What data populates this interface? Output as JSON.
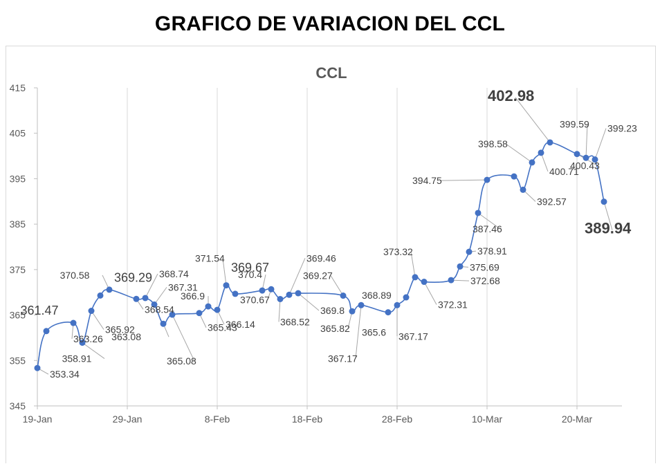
{
  "page": {
    "title": "GRAFICO DE VARIACION DEL CCL"
  },
  "chart_data": {
    "type": "line",
    "title": "CCL",
    "xlabel": "",
    "ylabel": "",
    "ylim": [
      345,
      415
    ],
    "yticks": [
      345,
      355,
      365,
      375,
      385,
      395,
      405,
      415
    ],
    "xlim_days": [
      0,
      65
    ],
    "xticks": [
      {
        "label": "19-Jan",
        "day": 0
      },
      {
        "label": "29-Jan",
        "day": 10
      },
      {
        "label": "8-Feb",
        "day": 20
      },
      {
        "label": "18-Feb",
        "day": 30
      },
      {
        "label": "28-Feb",
        "day": 40
      },
      {
        "label": "10-Mar",
        "day": 50
      },
      {
        "label": "20-Mar",
        "day": 60
      }
    ],
    "grid": "vertical",
    "smooth": true,
    "series": [
      {
        "color": "#4472c4",
        "points": [
          {
            "day": 0,
            "value": 353.34,
            "label": "353.34"
          },
          {
            "day": 1,
            "value": 361.47,
            "label": "361.47"
          },
          {
            "day": 4,
            "value": 363.26,
            "label": "363.26"
          },
          {
            "day": 5,
            "value": 358.91,
            "label": "358.91"
          },
          {
            "day": 6,
            "value": 365.92,
            "label": "365.92"
          },
          {
            "day": 7,
            "value": 369.29,
            "label": "369.29"
          },
          {
            "day": 8,
            "value": 370.58,
            "label": "370.58"
          },
          {
            "day": 11,
            "value": 368.54,
            "label": "368.54"
          },
          {
            "day": 12,
            "value": 368.74,
            "label": "368.74"
          },
          {
            "day": 13,
            "value": 367.31,
            "label": "367.31"
          },
          {
            "day": 14,
            "value": 363.08,
            "label": "363.08"
          },
          {
            "day": 15,
            "value": 365.08,
            "label": "365.08"
          },
          {
            "day": 18,
            "value": 365.43,
            "label": "365.43"
          },
          {
            "day": 19,
            "value": 366.9,
            "label": "366.9"
          },
          {
            "day": 20,
            "value": 366.14,
            "label": "366.14"
          },
          {
            "day": 21,
            "value": 371.54,
            "label": "371.54"
          },
          {
            "day": 22,
            "value": 369.67,
            "label": "369.67"
          },
          {
            "day": 25,
            "value": 370.4,
            "label": "370.4"
          },
          {
            "day": 26,
            "value": 370.67,
            "label": "370.67"
          },
          {
            "day": 27,
            "value": 368.52,
            "label": "368.52"
          },
          {
            "day": 28,
            "value": 369.46,
            "label": "369.46"
          },
          {
            "day": 29,
            "value": 369.8,
            "label": "369.8"
          },
          {
            "day": 34,
            "value": 369.27,
            "label": "369.27"
          },
          {
            "day": 35,
            "value": 365.82,
            "label": "365.82"
          },
          {
            "day": 36,
            "value": 367.17,
            "label": "367.17"
          },
          {
            "day": 39,
            "value": 365.6,
            "label": "365.6"
          },
          {
            "day": 40,
            "value": 367.17,
            "label": "367.17"
          },
          {
            "day": 41,
            "value": 368.89,
            "label": "368.89"
          },
          {
            "day": 42,
            "value": 373.32,
            "label": "373.32"
          },
          {
            "day": 43,
            "value": 372.31,
            "label": "372.31"
          },
          {
            "day": 46,
            "value": 372.68,
            "label": "372.68"
          },
          {
            "day": 47,
            "value": 375.69,
            "label": "375.69"
          },
          {
            "day": 48,
            "value": 378.91,
            "label": "378.91"
          },
          {
            "day": 49,
            "value": 387.46,
            "label": "387.46"
          },
          {
            "day": 50,
            "value": 394.75,
            "label": "394.75"
          },
          {
            "day": 53,
            "value": 395.5,
            "label": ""
          },
          {
            "day": 54,
            "value": 392.57,
            "label": "392.57"
          },
          {
            "day": 55,
            "value": 398.58,
            "label": "398.58"
          },
          {
            "day": 56,
            "value": 400.71,
            "label": "400.71"
          },
          {
            "day": 57,
            "value": 402.98,
            "label": "402.98"
          },
          {
            "day": 60,
            "value": 400.43,
            "label": "400.43"
          },
          {
            "day": 61,
            "value": 399.59,
            "label": "399.59"
          },
          {
            "day": 62,
            "value": 399.23,
            "label": "399.23"
          },
          {
            "day": 63,
            "value": 389.94,
            "label": "389.94"
          }
        ]
      }
    ]
  }
}
